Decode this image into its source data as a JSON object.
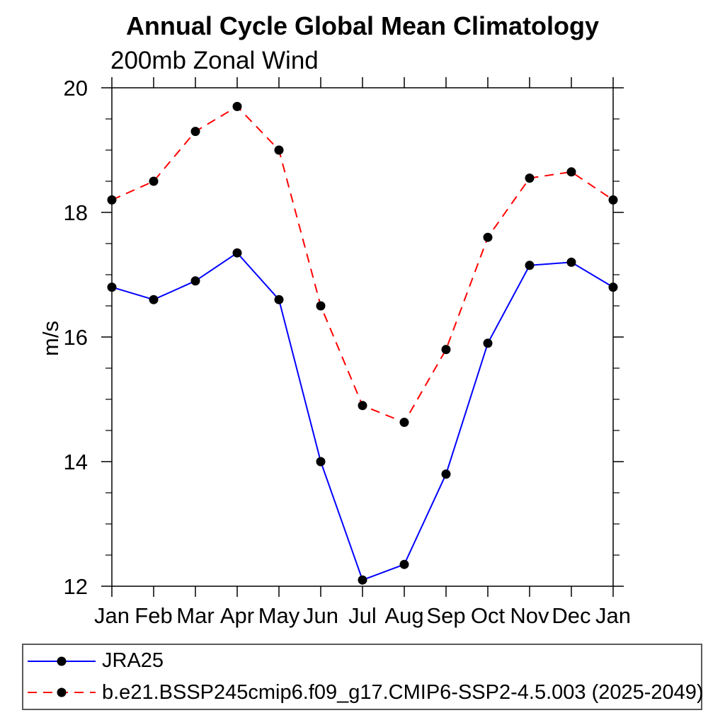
{
  "chart_data": {
    "type": "line",
    "title": "Annual Cycle Global Mean Climatology",
    "subtitle": "200mb Zonal Wind",
    "ylabel": "m/s",
    "xlabel": "",
    "categories": [
      "Jan",
      "Feb",
      "Mar",
      "Apr",
      "May",
      "Jun",
      "Jul",
      "Aug",
      "Sep",
      "Oct",
      "Nov",
      "Dec",
      "Jan"
    ],
    "ylim": [
      12,
      20
    ],
    "yticks": [
      12,
      14,
      16,
      18,
      20
    ],
    "y_minor_step": 0.5,
    "grid": false,
    "legend_position": "bottom",
    "axis_color": "#000000",
    "marker_color": "#000000",
    "legend_border_color": "#5a5a5a",
    "series": [
      {
        "name": "JRA25",
        "color": "#0000ff",
        "style": "solid",
        "marker": "filled-circle",
        "values": [
          16.8,
          16.6,
          16.9,
          17.35,
          16.6,
          14.0,
          12.1,
          12.35,
          13.8,
          15.9,
          17.15,
          17.2,
          16.8
        ]
      },
      {
        "name": "b.e21.BSSP245cmip6.f09_g17.CMIP6-SSP2-4.5.003 (2025-2049)",
        "color": "#ff0000",
        "style": "dashed",
        "marker": "filled-circle",
        "values": [
          18.2,
          18.5,
          19.3,
          19.7,
          19.0,
          16.5,
          14.9,
          14.63,
          15.8,
          17.6,
          18.55,
          18.65,
          18.2
        ]
      }
    ]
  }
}
